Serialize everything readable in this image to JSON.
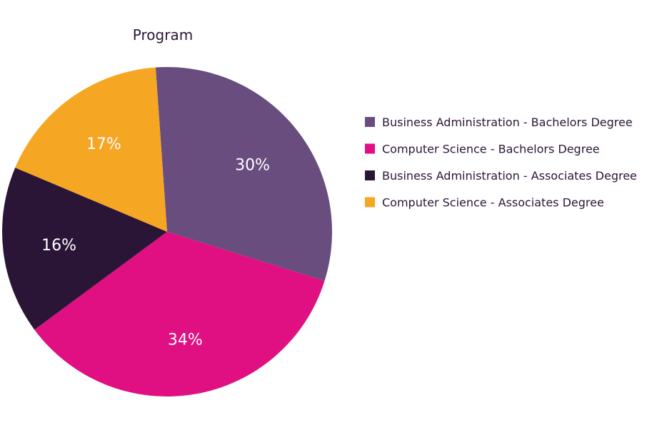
{
  "chart_data": {
    "type": "pie",
    "title": "Program",
    "legend_position": "right",
    "start_angle_deg": -4,
    "slices": [
      {
        "label": "Business Administration - Bachelors Degree",
        "value": 30,
        "display": "30%",
        "color": "#694d7e"
      },
      {
        "label": "Computer Science - Bachelors Degree",
        "value": 34,
        "display": "34%",
        "color": "#e00f82"
      },
      {
        "label": "Business Administration - Associates Degree",
        "value": 16,
        "display": "16%",
        "color": "#2b1537"
      },
      {
        "label": "Computer Science - Associates Degree",
        "value": 17,
        "display": "17%",
        "color": "#f5a623"
      }
    ]
  }
}
